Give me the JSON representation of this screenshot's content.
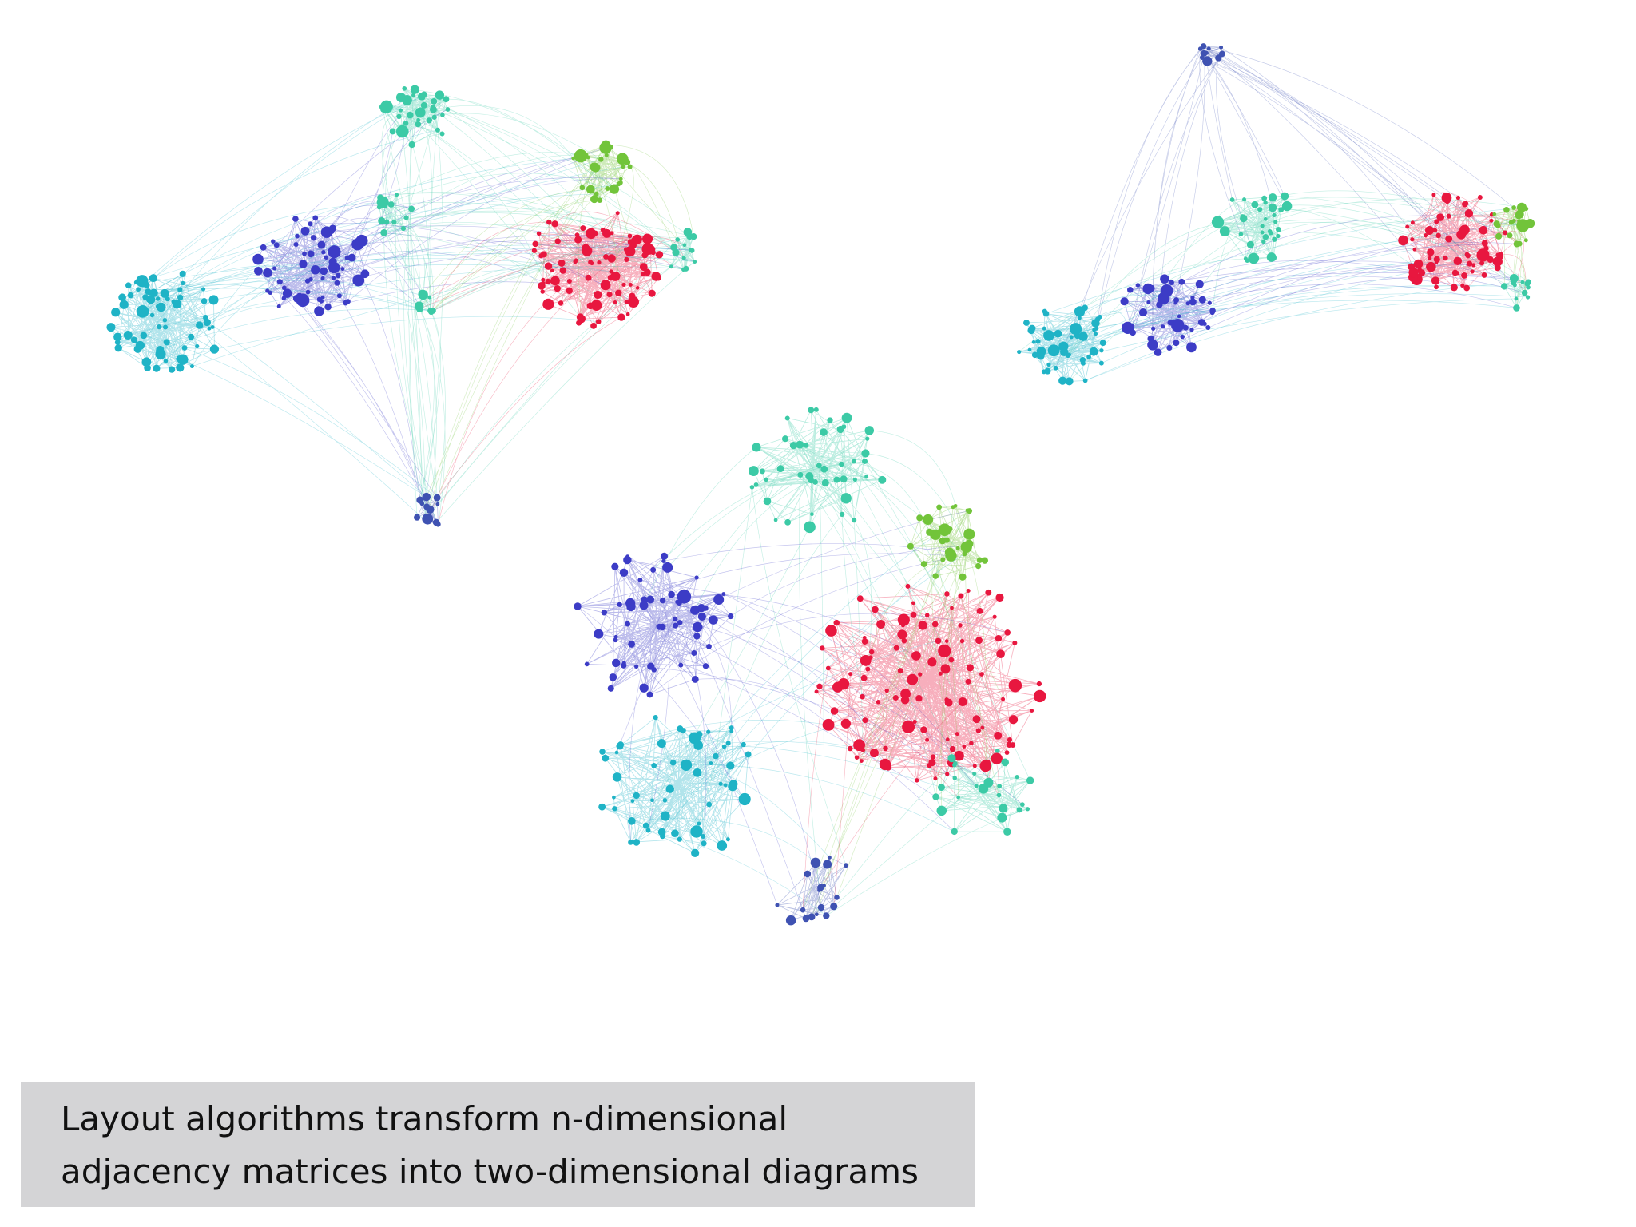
{
  "caption": {
    "lines": [
      "Layout algorithms transform n-dimensional",
      "adjacency matrices into two-dimensional diagrams"
    ]
  }
}
